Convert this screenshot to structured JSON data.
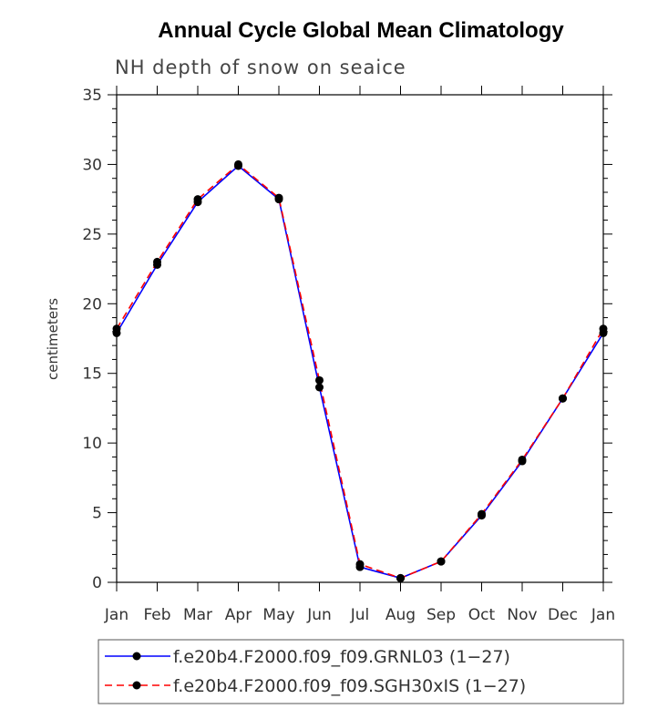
{
  "chart_data": {
    "type": "line",
    "title": "Annual Cycle Global Mean Climatology",
    "subtitle": "NH depth of snow on seaice",
    "xlabel": "",
    "ylabel": "centimeters",
    "ylim": [
      0,
      35
    ],
    "yticks": [
      0,
      5,
      10,
      15,
      20,
      25,
      30,
      35
    ],
    "categories": [
      "Jan",
      "Feb",
      "Mar",
      "Apr",
      "May",
      "Jun",
      "Jul",
      "Aug",
      "Sep",
      "Oct",
      "Nov",
      "Dec",
      "Jan"
    ],
    "series": [
      {
        "name": "f.e20b4.F2000.f09_f09.GRNL03 (1−27)",
        "color": "#0000ff",
        "dash": "solid",
        "values": [
          17.9,
          22.8,
          27.3,
          29.9,
          27.5,
          14.0,
          1.1,
          0.3,
          1.5,
          4.8,
          8.7,
          13.2,
          17.9
        ]
      },
      {
        "name": "f.e20b4.F2000.f09_f09.SGH30xIS (1−27)",
        "color": "#ff0000",
        "dash": "dashed",
        "values": [
          18.2,
          23.0,
          27.5,
          30.0,
          27.6,
          14.5,
          1.3,
          0.3,
          1.5,
          4.9,
          8.8,
          13.2,
          18.2
        ]
      }
    ],
    "legend_position": "bottom"
  }
}
